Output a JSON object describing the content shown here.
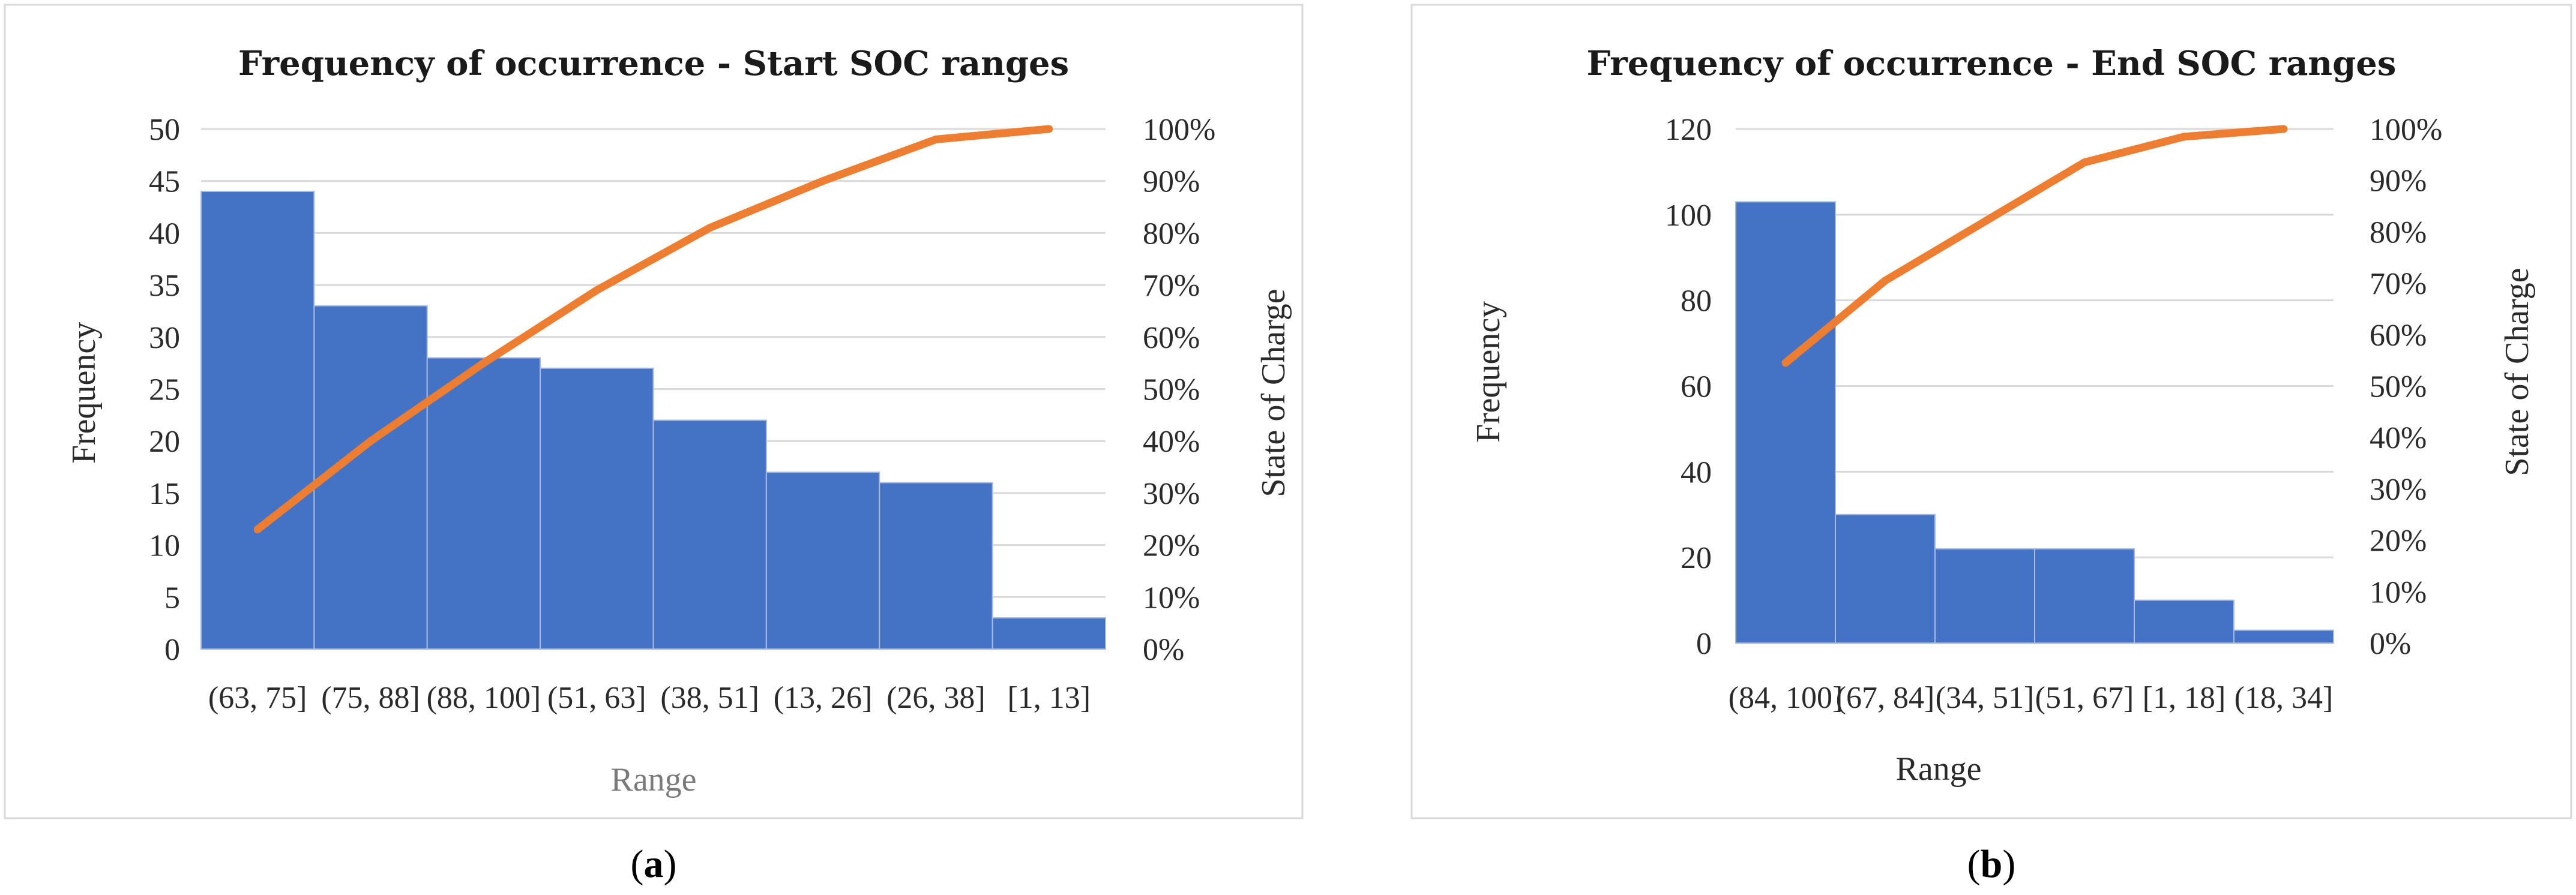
{
  "chart_data": [
    {
      "type": "bar",
      "panel_label": "(a)",
      "panel_letter": "a",
      "title": "Frequency of occurrence - Start SOC ranges",
      "xlabel": "Range",
      "ylabel": "Frequency",
      "y2label": "State of Charge",
      "categories": [
        "(63, 75]",
        "(75, 88]",
        "(88, 100]",
        "(51, 63]",
        "(38, 51]",
        "(13, 26]",
        "(26, 38]",
        "[1, 13]"
      ],
      "series": [
        {
          "name": "Frequency",
          "type": "bar",
          "axis": "left",
          "color": "#4472c4",
          "values": [
            44,
            33,
            28,
            27,
            22,
            17,
            16,
            3
          ]
        },
        {
          "name": "Cumulative %",
          "type": "line",
          "axis": "right",
          "color": "#ed7d31",
          "values": [
            0.23,
            0.4,
            0.55,
            0.69,
            0.81,
            0.9,
            0.98,
            1.0
          ]
        }
      ],
      "ylim": [
        0,
        50
      ],
      "yticks": [
        0,
        5,
        10,
        15,
        20,
        25,
        30,
        35,
        40,
        45,
        50
      ],
      "y2lim": [
        0,
        1
      ],
      "y2ticks": [
        "0%",
        "10%",
        "20%",
        "30%",
        "40%",
        "50%",
        "60%",
        "70%",
        "80%",
        "90%",
        "100%"
      ],
      "grid": true,
      "legend": "none"
    },
    {
      "type": "bar",
      "panel_label": "(b)",
      "panel_letter": "b",
      "title": "Frequency of occurrence - End SOC ranges",
      "xlabel": "Range",
      "ylabel": "Frequency",
      "y2label": "State of Charge",
      "categories": [
        "(84, 100]",
        "(67, 84]",
        "(34, 51]",
        "(51, 67]",
        "[1, 18]",
        "(18, 34]"
      ],
      "series": [
        {
          "name": "Frequency",
          "type": "bar",
          "axis": "left",
          "color": "#4472c4",
          "values": [
            103,
            30,
            22,
            22,
            10,
            3
          ]
        },
        {
          "name": "Cumulative %",
          "type": "line",
          "axis": "right",
          "color": "#ed7d31",
          "values": [
            0.545,
            0.705,
            0.82,
            0.935,
            0.985,
            1.0
          ]
        }
      ],
      "ylim": [
        0,
        120
      ],
      "yticks": [
        0,
        20,
        40,
        60,
        80,
        100,
        120
      ],
      "y2lim": [
        0,
        1
      ],
      "y2ticks": [
        "0%",
        "10%",
        "20%",
        "30%",
        "40%",
        "50%",
        "60%",
        "70%",
        "80%",
        "90%",
        "100%"
      ],
      "grid": true,
      "legend": "none"
    }
  ]
}
